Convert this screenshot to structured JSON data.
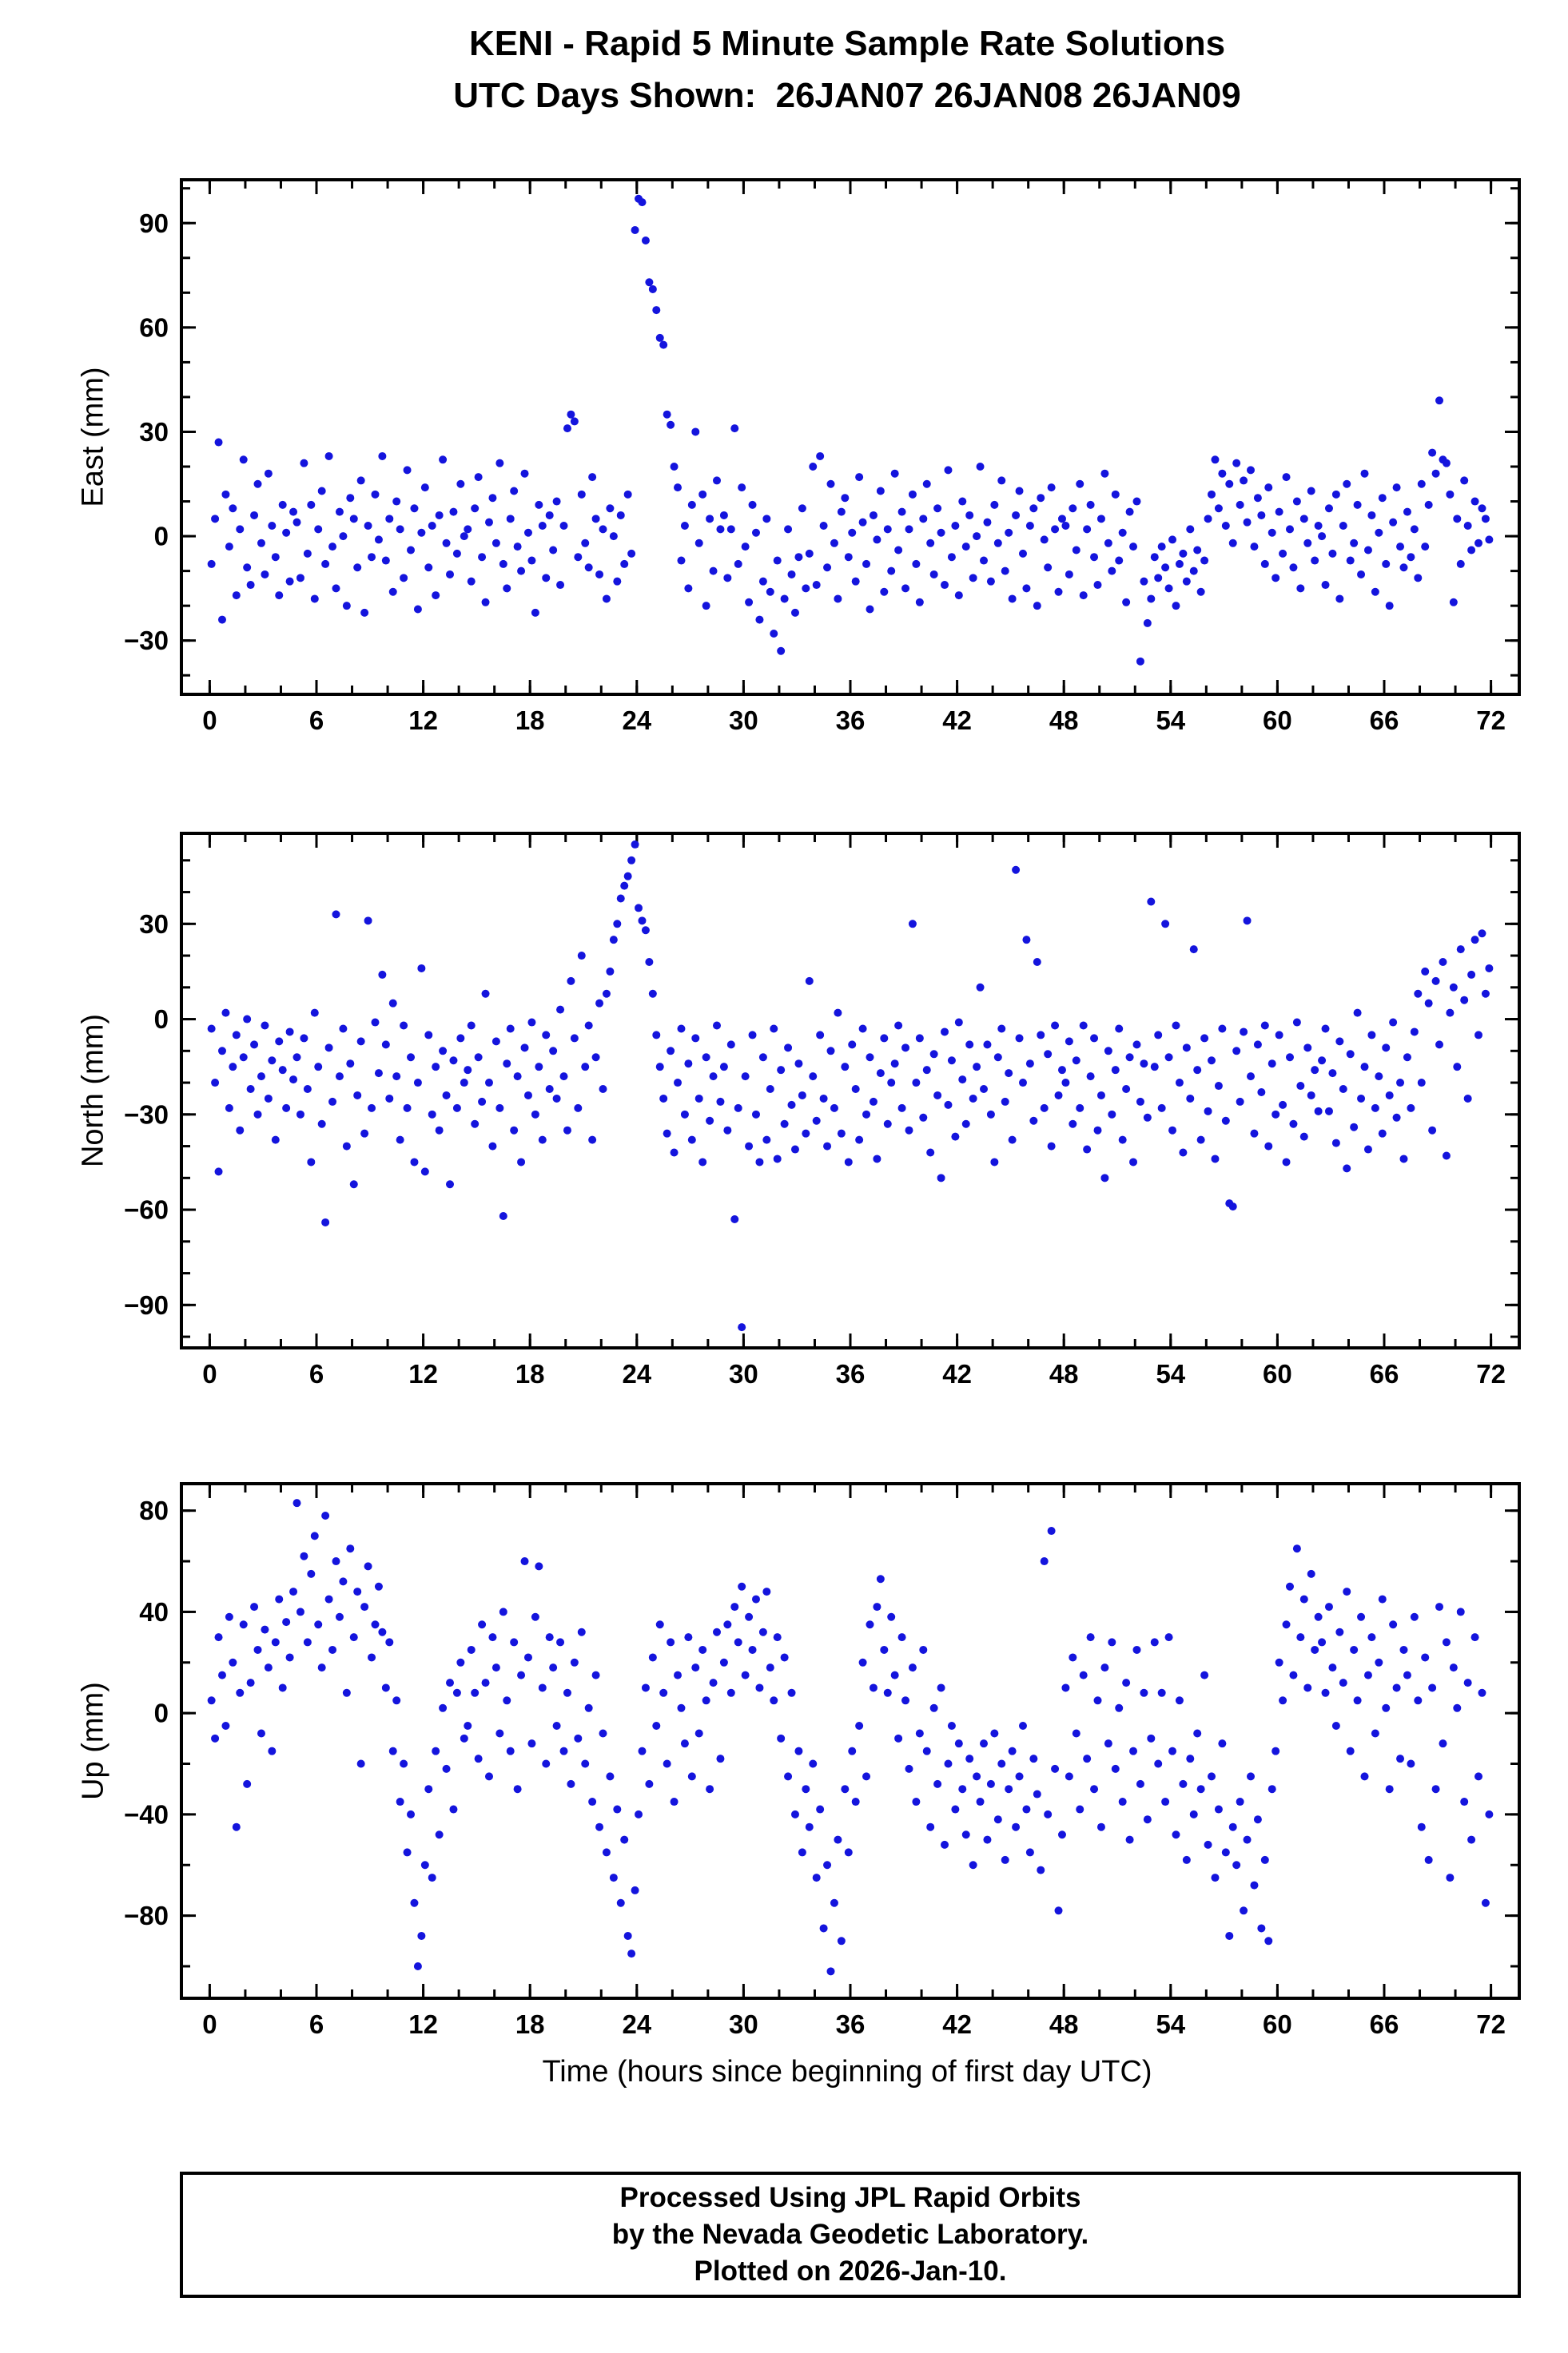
{
  "title": {
    "line1": "KENI - Rapid 5 Minute Sample Rate Solutions",
    "line2": "UTC Days Shown:  26JAN07 26JAN08 26JAN09"
  },
  "xlabel": "Time (hours since beginning of first day UTC)",
  "footer": {
    "line1": "Processed Using JPL Rapid Orbits",
    "line2": "by the Nevada Geodetic Laboratory.",
    "line3": "Plotted on 2026-Jan-10."
  },
  "style": {
    "point_color": "#1414dd",
    "point_radius": 5,
    "frame_color": "#000000"
  },
  "chart_data": [
    {
      "type": "scatter",
      "title": "KENI East component, rapid 5 minute solutions",
      "ylabel": "East (mm)",
      "xlabel": "",
      "xlim": [
        -1.5,
        73.5
      ],
      "ylim": [
        -45,
        102
      ],
      "xticks": [
        0,
        6,
        12,
        18,
        24,
        30,
        36,
        42,
        48,
        54,
        60,
        66,
        72
      ],
      "yticks": [
        -30,
        0,
        30,
        60,
        90
      ],
      "x_minor_step": 2,
      "y_minor_step": 10,
      "grid": false,
      "legend": false,
      "x_start": 0.1,
      "x_step": 0.2,
      "y": [
        -8,
        5,
        27,
        -24,
        12,
        -3,
        8,
        -17,
        2,
        22,
        -9,
        -14,
        6,
        15,
        -2,
        -11,
        18,
        3,
        -6,
        -17,
        9,
        1,
        -13,
        7,
        4,
        -12,
        21,
        -5,
        9,
        -18,
        2,
        13,
        -8,
        23,
        -3,
        -15,
        7,
        0,
        -20,
        11,
        5,
        -9,
        16,
        -22,
        3,
        -6,
        12,
        -1,
        23,
        -7,
        5,
        -16,
        10,
        2,
        -12,
        19,
        -4,
        8,
        -21,
        1,
        14,
        -9,
        3,
        -17,
        6,
        22,
        -2,
        -11,
        7,
        -5,
        15,
        0,
        2,
        -13,
        8,
        17,
        -6,
        -19,
        4,
        11,
        -2,
        21,
        -8,
        -15,
        5,
        13,
        -3,
        -10,
        18,
        1,
        -7,
        -22,
        9,
        3,
        -12,
        6,
        -4,
        10,
        -14,
        3,
        31,
        35,
        33,
        -6,
        12,
        -2,
        -9,
        17,
        5,
        -11,
        2,
        -18,
        8,
        0,
        -13,
        6,
        -8,
        12,
        -5,
        88,
        97,
        96,
        85,
        73,
        71,
        65,
        57,
        55,
        35,
        32,
        20,
        14,
        -7,
        3,
        -15,
        9,
        30,
        -2,
        12,
        -20,
        5,
        -10,
        16,
        2,
        6,
        -12,
        2,
        31,
        -8,
        14,
        -3,
        -19,
        9,
        1,
        -24,
        -13,
        5,
        -16,
        -28,
        -7,
        -33,
        -18,
        2,
        -11,
        -22,
        -6,
        8,
        -15,
        -5,
        20,
        -14,
        23,
        3,
        -9,
        15,
        -2,
        -18,
        7,
        11,
        -6,
        1,
        -13,
        17,
        4,
        -8,
        -21,
        6,
        -1,
        13,
        -16,
        2,
        -10,
        18,
        -4,
        7,
        -15,
        2,
        12,
        -8,
        -19,
        5,
        15,
        -2,
        -11,
        8,
        1,
        -14,
        19,
        -6,
        3,
        -17,
        10,
        -3,
        6,
        -12,
        0,
        20,
        -7,
        4,
        -13,
        9,
        -2,
        16,
        -10,
        1,
        -18,
        6,
        13,
        -5,
        -15,
        3,
        8,
        -20,
        11,
        -1,
        -9,
        14,
        2,
        -16,
        5,
        3,
        -11,
        8,
        -4,
        15,
        -17,
        2,
        9,
        -6,
        -14,
        5,
        18,
        -2,
        -10,
        12,
        -7,
        1,
        -19,
        7,
        -3,
        10,
        -36,
        -13,
        -25,
        -18,
        -6,
        -12,
        -3,
        -9,
        -15,
        -1,
        -20,
        -8,
        -5,
        -13,
        2,
        -10,
        -4,
        -16,
        -7,
        5,
        12,
        22,
        8,
        18,
        3,
        15,
        -2,
        21,
        9,
        16,
        4,
        19,
        -3,
        11,
        6,
        -8,
        14,
        1,
        -12,
        7,
        -5,
        17,
        2,
        -9,
        10,
        -15,
        5,
        -2,
        13,
        -7,
        3,
        0,
        -14,
        8,
        -5,
        12,
        -18,
        3,
        15,
        -7,
        -2,
        9,
        -11,
        18,
        -4,
        6,
        -16,
        1,
        11,
        -8,
        -20,
        4,
        14,
        -3,
        -9,
        7,
        -6,
        2,
        -12,
        15,
        -3,
        9,
        24,
        18,
        39,
        22,
        21,
        12,
        -19,
        5,
        -8,
        16,
        3,
        -4,
        10,
        -2,
        8,
        5,
        -1
      ]
    },
    {
      "type": "scatter",
      "title": "KENI North component, rapid 5 minute solutions",
      "ylabel": "North (mm)",
      "xlabel": "",
      "xlim": [
        -1.5,
        73.5
      ],
      "ylim": [
        -103,
        58
      ],
      "xticks": [
        0,
        6,
        12,
        18,
        24,
        30,
        36,
        42,
        48,
        54,
        60,
        66,
        72
      ],
      "yticks": [
        -90,
        -60,
        -30,
        0,
        30
      ],
      "x_minor_step": 2,
      "y_minor_step": 10,
      "grid": false,
      "legend": false,
      "x_start": 0.1,
      "x_step": 0.2,
      "y": [
        -3,
        -20,
        -48,
        -10,
        2,
        -28,
        -15,
        -5,
        -35,
        -12,
        0,
        -22,
        -8,
        -30,
        -18,
        -2,
        -25,
        -13,
        -38,
        -7,
        -16,
        -28,
        -4,
        -19,
        -12,
        -30,
        -6,
        -22,
        -45,
        2,
        -15,
        -33,
        -64,
        -9,
        -26,
        33,
        -18,
        -3,
        -40,
        -14,
        -52,
        -24,
        -7,
        -36,
        31,
        -28,
        -1,
        -17,
        14,
        -8,
        -25,
        5,
        -18,
        -38,
        -2,
        -28,
        -12,
        -45,
        -20,
        16,
        -48,
        -5,
        -30,
        -15,
        -35,
        -10,
        -24,
        -52,
        -13,
        -28,
        -6,
        -20,
        -16,
        -2,
        -33,
        -12,
        -26,
        8,
        -20,
        -40,
        -7,
        -28,
        -62,
        -14,
        -3,
        -35,
        -18,
        -45,
        -9,
        -24,
        -1,
        -30,
        -15,
        -38,
        -5,
        -22,
        -10,
        -25,
        3,
        -18,
        -35,
        12,
        -6,
        -28,
        20,
        -15,
        -2,
        -38,
        -12,
        5,
        -22,
        8,
        15,
        25,
        30,
        38,
        42,
        45,
        50,
        55,
        35,
        31,
        28,
        18,
        8,
        -5,
        -15,
        -25,
        -36,
        -10,
        -42,
        -20,
        -3,
        -30,
        -14,
        -38,
        -6,
        -25,
        -45,
        -12,
        -32,
        -18,
        -2,
        -26,
        -15,
        -35,
        -8,
        -63,
        -28,
        -97,
        -18,
        -40,
        -5,
        -30,
        -45,
        -12,
        -38,
        -22,
        -3,
        -44,
        -16,
        -33,
        -9,
        -27,
        -41,
        -14,
        -24,
        -36,
        12,
        -18,
        -32,
        -5,
        -25,
        -40,
        -10,
        -28,
        2,
        -36,
        -15,
        -45,
        -8,
        -22,
        -38,
        -3,
        -30,
        -12,
        -26,
        -44,
        -17,
        -6,
        -33,
        -20,
        -14,
        -2,
        -28,
        -9,
        -35,
        30,
        -20,
        -6,
        -31,
        -16,
        -42,
        -11,
        -24,
        -50,
        -4,
        -27,
        -13,
        -37,
        -1,
        -19,
        -33,
        -8,
        -25,
        -15,
        10,
        -22,
        -8,
        -30,
        -45,
        -12,
        -3,
        -26,
        -17,
        -38,
        47,
        -6,
        -20,
        25,
        -14,
        -32,
        18,
        -5,
        -28,
        -11,
        -40,
        -2,
        -24,
        -16,
        -20,
        -7,
        -33,
        -13,
        -28,
        -2,
        -41,
        -18,
        -6,
        -35,
        -24,
        -50,
        -10,
        -30,
        -16,
        -3,
        -38,
        -22,
        -12,
        -45,
        -8,
        -26,
        -14,
        -31,
        37,
        -15,
        -5,
        -28,
        30,
        -12,
        -35,
        -2,
        -20,
        -42,
        -9,
        -25,
        22,
        -16,
        -38,
        -6,
        -29,
        -13,
        -44,
        -21,
        -3,
        -32,
        -58,
        -59,
        -10,
        -26,
        -4,
        31,
        -18,
        -36,
        -8,
        -23,
        -2,
        -40,
        -14,
        -30,
        -5,
        -27,
        -45,
        -12,
        -33,
        -1,
        -21,
        -37,
        -9,
        -24,
        -16,
        -29,
        -13,
        -3,
        -29,
        -17,
        -39,
        -7,
        -22,
        -47,
        -11,
        -34,
        2,
        -25,
        -15,
        -41,
        -5,
        -28,
        -18,
        -36,
        -9,
        -24,
        -1,
        -31,
        -20,
        -44,
        -12,
        -28,
        -4,
        8,
        -20,
        15,
        5,
        -35,
        12,
        -8,
        18,
        -43,
        2,
        10,
        -15,
        22,
        6,
        -25,
        14,
        25,
        -5,
        27,
        8,
        16
      ]
    },
    {
      "type": "scatter",
      "title": "KENI Up component, rapid 5 minute solutions",
      "ylabel": "Up (mm)",
      "xlabel": "Time (hours since beginning of first day UTC)",
      "xlim": [
        -1.5,
        73.5
      ],
      "ylim": [
        -112,
        90
      ],
      "xticks": [
        0,
        6,
        12,
        18,
        24,
        30,
        36,
        42,
        48,
        54,
        60,
        66,
        72
      ],
      "yticks": [
        -80,
        -40,
        0,
        40,
        80
      ],
      "x_minor_step": 2,
      "y_minor_step": 20,
      "grid": false,
      "legend": false,
      "x_start": 0.1,
      "x_step": 0.2,
      "y": [
        5,
        -10,
        30,
        15,
        -5,
        38,
        20,
        -45,
        8,
        35,
        -28,
        12,
        42,
        25,
        -8,
        33,
        18,
        -15,
        28,
        45,
        10,
        36,
        22,
        48,
        83,
        40,
        62,
        28,
        55,
        70,
        35,
        18,
        78,
        45,
        25,
        60,
        38,
        52,
        8,
        65,
        30,
        48,
        -20,
        42,
        58,
        22,
        35,
        50,
        32,
        10,
        28,
        -15,
        5,
        -35,
        -20,
        -55,
        -40,
        -75,
        -100,
        -88,
        -60,
        -30,
        -65,
        -15,
        -48,
        2,
        -22,
        12,
        -38,
        8,
        20,
        -10,
        -5,
        25,
        8,
        -18,
        35,
        12,
        -25,
        30,
        18,
        -8,
        40,
        5,
        -15,
        28,
        -30,
        15,
        60,
        22,
        -12,
        38,
        58,
        10,
        -20,
        30,
        18,
        -5,
        28,
        -15,
        8,
        -28,
        20,
        -10,
        32,
        -20,
        2,
        -35,
        15,
        -45,
        -8,
        -55,
        -25,
        -65,
        -38,
        -75,
        -50,
        -88,
        -95,
        -70,
        -40,
        -15,
        10,
        -28,
        22,
        -5,
        35,
        8,
        -20,
        28,
        -35,
        15,
        2,
        -12,
        30,
        -25,
        18,
        -8,
        25,
        5,
        -30,
        12,
        32,
        -18,
        20,
        35,
        8,
        42,
        28,
        50,
        15,
        38,
        25,
        45,
        10,
        32,
        48,
        18,
        5,
        30,
        -10,
        22,
        -25,
        8,
        -40,
        -15,
        -55,
        -30,
        -45,
        -20,
        -65,
        -38,
        -85,
        -60,
        -102,
        -75,
        -50,
        -90,
        -30,
        -55,
        -15,
        -35,
        -5,
        20,
        -25,
        35,
        10,
        42,
        53,
        25,
        8,
        38,
        15,
        -10,
        30,
        5,
        -22,
        18,
        -35,
        -8,
        25,
        -15,
        -45,
        2,
        -28,
        10,
        -52,
        -20,
        -5,
        -38,
        -12,
        -30,
        -48,
        -18,
        -60,
        -25,
        -35,
        -12,
        -50,
        -28,
        -8,
        -42,
        -20,
        -58,
        -30,
        -15,
        -45,
        -25,
        -5,
        -38,
        -55,
        -18,
        -32,
        -62,
        60,
        -40,
        72,
        -22,
        -78,
        -48,
        10,
        -25,
        22,
        -8,
        -38,
        15,
        -18,
        30,
        -30,
        5,
        -45,
        18,
        -12,
        28,
        -22,
        2,
        -35,
        12,
        -50,
        -15,
        25,
        -28,
        8,
        -42,
        -10,
        28,
        -20,
        8,
        -35,
        30,
        -15,
        -48,
        5,
        -28,
        -58,
        -18,
        -40,
        -8,
        -30,
        15,
        -52,
        -25,
        -65,
        -38,
        -12,
        -55,
        -88,
        -45,
        -60,
        -35,
        -78,
        -50,
        -25,
        -68,
        -42,
        -85,
        -58,
        -90,
        -30,
        -15,
        20,
        5,
        35,
        50,
        15,
        65,
        30,
        45,
        10,
        55,
        25,
        38,
        28,
        8,
        42,
        18,
        -5,
        32,
        12,
        48,
        -15,
        25,
        5,
        38,
        -25,
        15,
        30,
        -8,
        20,
        45,
        2,
        -30,
        35,
        10,
        -18,
        25,
        15,
        -20,
        38,
        5,
        -45,
        22,
        -58,
        10,
        -30,
        42,
        -12,
        28,
        -65,
        18,
        2,
        40,
        -35,
        12,
        -50,
        30,
        -25,
        8,
        -75,
        -40
      ]
    }
  ]
}
